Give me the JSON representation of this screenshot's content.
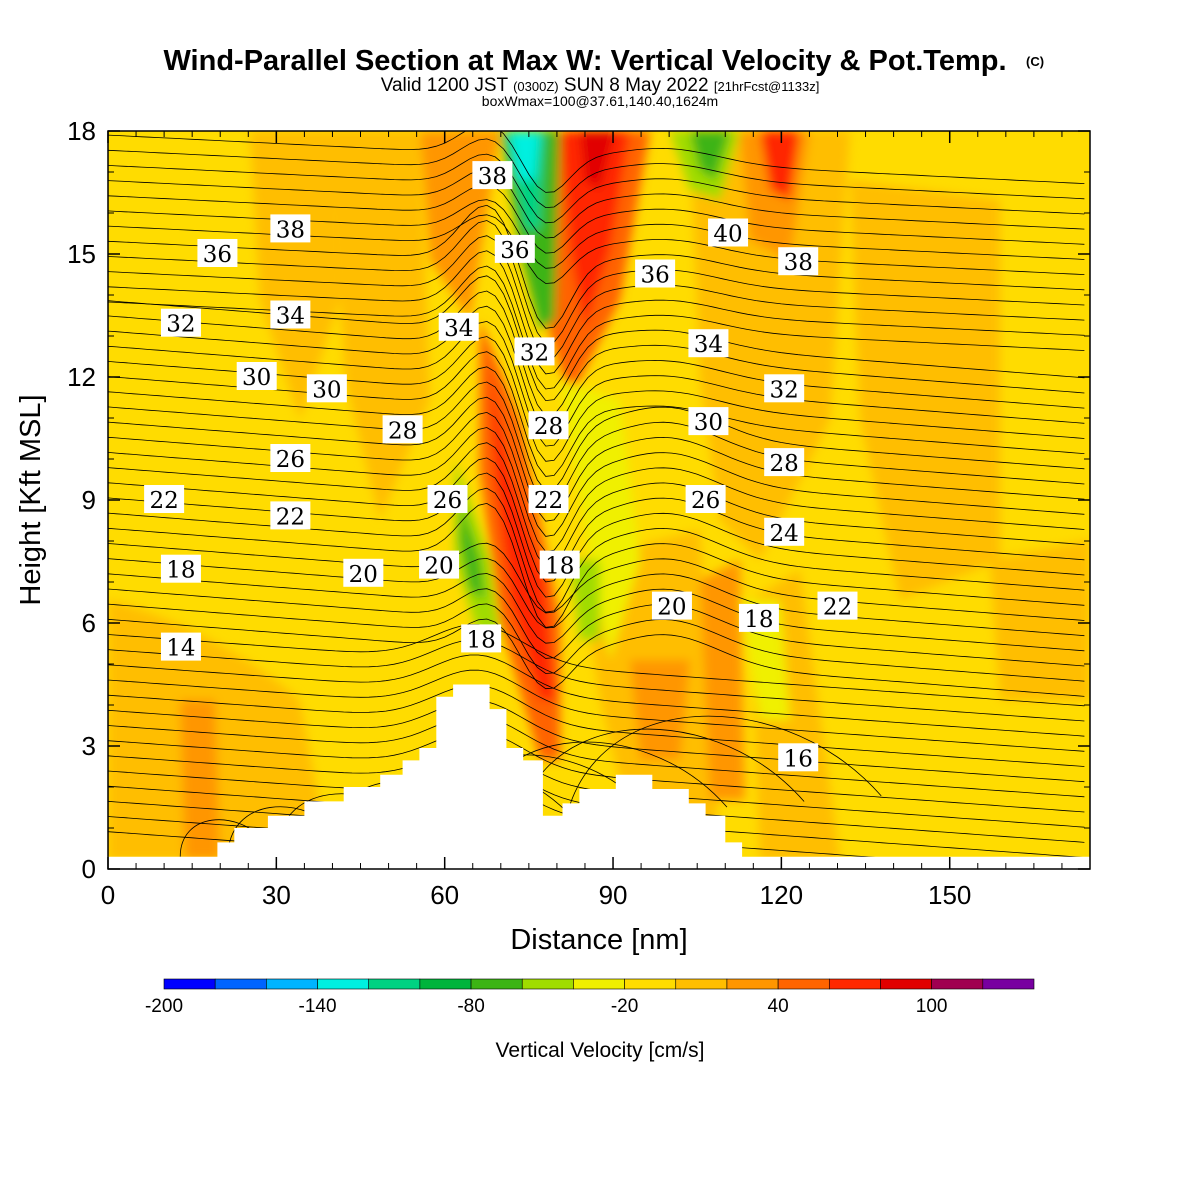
{
  "title": "Wind-Parallel Section at Max W: Vertical Velocity & Pot.Temp.",
  "title_mark": "(C)",
  "subtitle": {
    "part1": "Valid 1200 JST",
    "part2": "(0300Z)",
    "part3": "SUN 8 May 2022",
    "part4": "[21hrFcst@1133z]"
  },
  "info_line": "boxWmax=100@37.61,140.40,1624m",
  "chart_data": {
    "type": "heatmap",
    "title": "Wind-Parallel Section at Max W: Vertical Velocity & Pot.Temp.",
    "xlabel": "Distance [nm]",
    "ylabel": "Height [Kft MSL]",
    "xlim": [
      0,
      175
    ],
    "ylim": [
      0,
      18
    ],
    "x_ticks": [
      0,
      30,
      60,
      90,
      120,
      150
    ],
    "y_ticks": [
      0,
      3,
      6,
      9,
      12,
      15,
      18
    ],
    "field": "Vertical Velocity [cm/s] (shaded), Potential Temperature (contours)",
    "colorbar": {
      "label": "Vertical Velocity [cm/s]",
      "tick_labels": [
        "-200",
        "-140",
        "-80",
        "-20",
        "40",
        "100"
      ],
      "tick_values": [
        -200,
        -140,
        -80,
        -20,
        40,
        100
      ],
      "levels": [
        -200,
        -180,
        -160,
        -140,
        -120,
        -100,
        -80,
        -60,
        -40,
        -20,
        0,
        20,
        40,
        60,
        80,
        100,
        120,
        140
      ],
      "colors": [
        "#0000ff",
        "#0064ff",
        "#00b4ff",
        "#00f0e0",
        "#00d282",
        "#00b43c",
        "#3cb414",
        "#a0dc00",
        "#f0f000",
        "#ffdc00",
        "#ffbe00",
        "#ff9600",
        "#ff6400",
        "#ff2800",
        "#e10000",
        "#a00050",
        "#7800a0"
      ]
    },
    "contour_labels": [
      {
        "value": "38",
        "x": 68.5,
        "y": 16.9
      },
      {
        "value": "38",
        "x": 32.5,
        "y": 15.6
      },
      {
        "value": "36",
        "x": 19.5,
        "y": 15.0
      },
      {
        "value": "36",
        "x": 72.5,
        "y": 15.1
      },
      {
        "value": "40",
        "x": 110.5,
        "y": 15.5
      },
      {
        "value": "38",
        "x": 123,
        "y": 14.8
      },
      {
        "value": "36",
        "x": 97.5,
        "y": 14.5
      },
      {
        "value": "32",
        "x": 13,
        "y": 13.3
      },
      {
        "value": "34",
        "x": 32.5,
        "y": 13.5
      },
      {
        "value": "34",
        "x": 62.5,
        "y": 13.2
      },
      {
        "value": "32",
        "x": 76,
        "y": 12.6
      },
      {
        "value": "34",
        "x": 107,
        "y": 12.8
      },
      {
        "value": "30",
        "x": 26.5,
        "y": 12.0
      },
      {
        "value": "30",
        "x": 39,
        "y": 11.7
      },
      {
        "value": "32",
        "x": 120.5,
        "y": 11.7
      },
      {
        "value": "28",
        "x": 52.5,
        "y": 10.7
      },
      {
        "value": "28",
        "x": 78.5,
        "y": 10.8
      },
      {
        "value": "30",
        "x": 107,
        "y": 10.9
      },
      {
        "value": "26",
        "x": 32.5,
        "y": 10.0
      },
      {
        "value": "28",
        "x": 120.5,
        "y": 9.9
      },
      {
        "value": "22",
        "x": 10,
        "y": 9.0
      },
      {
        "value": "26",
        "x": 60.5,
        "y": 9.0
      },
      {
        "value": "22",
        "x": 78.5,
        "y": 9.0
      },
      {
        "value": "26",
        "x": 106.5,
        "y": 9.0
      },
      {
        "value": "22",
        "x": 32.5,
        "y": 8.6
      },
      {
        "value": "24",
        "x": 120.5,
        "y": 8.2
      },
      {
        "value": "18",
        "x": 13,
        "y": 7.3
      },
      {
        "value": "20",
        "x": 45.5,
        "y": 7.2
      },
      {
        "value": "20",
        "x": 59,
        "y": 7.4
      },
      {
        "value": "18",
        "x": 80.5,
        "y": 7.4
      },
      {
        "value": "20",
        "x": 100.5,
        "y": 6.4
      },
      {
        "value": "22",
        "x": 130,
        "y": 6.4
      },
      {
        "value": "18",
        "x": 116,
        "y": 6.1
      },
      {
        "value": "14",
        "x": 13,
        "y": 5.4
      },
      {
        "value": "18",
        "x": 66.5,
        "y": 5.6
      },
      {
        "value": "16",
        "x": 123,
        "y": 2.7
      }
    ],
    "terrain_profile_kft": [
      [
        0,
        0.3
      ],
      [
        19.5,
        0.3
      ],
      [
        19.5,
        0.65
      ],
      [
        22.5,
        0.65
      ],
      [
        22.5,
        1.0
      ],
      [
        28.5,
        1.0
      ],
      [
        28.5,
        1.3
      ],
      [
        35,
        1.3
      ],
      [
        35,
        1.65
      ],
      [
        42,
        1.65
      ],
      [
        42,
        2.0
      ],
      [
        48.5,
        2.0
      ],
      [
        48.5,
        2.3
      ],
      [
        52.5,
        2.3
      ],
      [
        52.5,
        2.65
      ],
      [
        55.5,
        2.65
      ],
      [
        55.5,
        2.95
      ],
      [
        58.5,
        2.95
      ],
      [
        58.5,
        4.2
      ],
      [
        61.5,
        4.2
      ],
      [
        61.5,
        4.5
      ],
      [
        68,
        4.5
      ],
      [
        68,
        3.9
      ],
      [
        71,
        3.9
      ],
      [
        71,
        2.95
      ],
      [
        74,
        2.95
      ],
      [
        74,
        2.65
      ],
      [
        77.5,
        2.65
      ],
      [
        77.5,
        1.95
      ],
      [
        77.5,
        1.3
      ],
      [
        81,
        1.3
      ],
      [
        81,
        1.6
      ],
      [
        84,
        1.6
      ],
      [
        84,
        1.95
      ],
      [
        90.5,
        1.95
      ],
      [
        90.5,
        2.3
      ],
      [
        97,
        2.3
      ],
      [
        97,
        1.95
      ],
      [
        103.5,
        1.95
      ],
      [
        103.5,
        1.6
      ],
      [
        106.5,
        1.6
      ],
      [
        106.5,
        1.3
      ],
      [
        110,
        1.3
      ],
      [
        110,
        0.65
      ],
      [
        113,
        0.65
      ],
      [
        113,
        0.3
      ],
      [
        175,
        0.3
      ]
    ]
  }
}
